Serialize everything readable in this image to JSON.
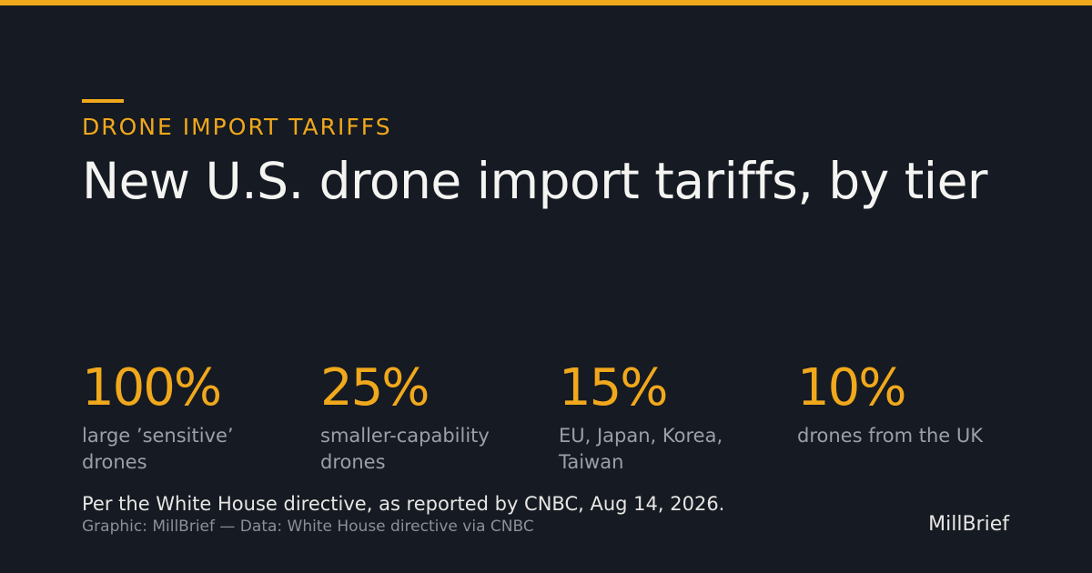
{
  "header": {
    "kicker": "DRONE IMPORT TARIFFS",
    "title": "New U.S. drone import tariffs, by tier"
  },
  "stats": [
    {
      "value": "100%",
      "label": "large ’sensitive’ drones"
    },
    {
      "value": "25%",
      "label": "smaller-capability drones"
    },
    {
      "value": "15%",
      "label": "EU, Japan, Korea, Taiwan"
    },
    {
      "value": "10%",
      "label": "drones from the UK"
    }
  ],
  "footer": {
    "note": "Per the White House directive, as reported by CNBC, Aug 14, 2026.",
    "source": "Graphic: MillBrief — Data: White House directive via CNBC",
    "brand": "MillBrief"
  },
  "colors": {
    "background": "#161a22",
    "accent": "#f0a81c",
    "title": "#f4f4f2",
    "label": "#9aa0aa",
    "footnote": "#e6e6e4",
    "source": "#8a909a",
    "brand": "#e6e6e4"
  }
}
